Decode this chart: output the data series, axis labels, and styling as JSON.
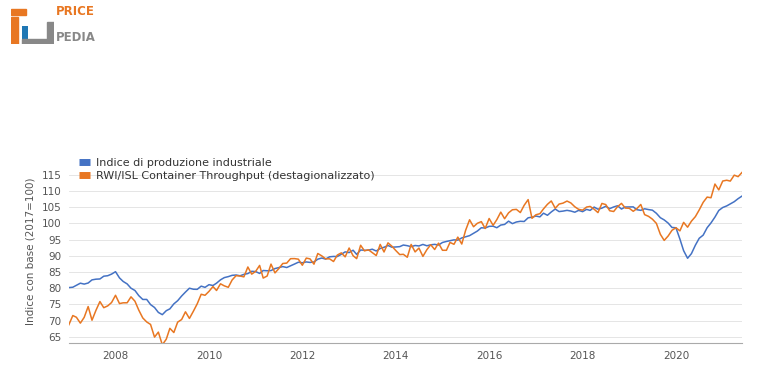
{
  "title": "",
  "ylabel": "Indice con base (2017=100)",
  "blue_label": "Indice di produzione industriale",
  "orange_label": "RWI/ISL Container Throughput (destagionalizzato)",
  "blue_color": "#4472C4",
  "orange_color": "#E87722",
  "background_color": "#ffffff",
  "ylim": [
    63,
    120
  ],
  "yticks": [
    65,
    70,
    75,
    80,
    85,
    90,
    95,
    100,
    105,
    110,
    115
  ],
  "grid_color": "#e0e0e0",
  "line_width": 1.1,
  "start_year": 2007,
  "start_month": 1
}
